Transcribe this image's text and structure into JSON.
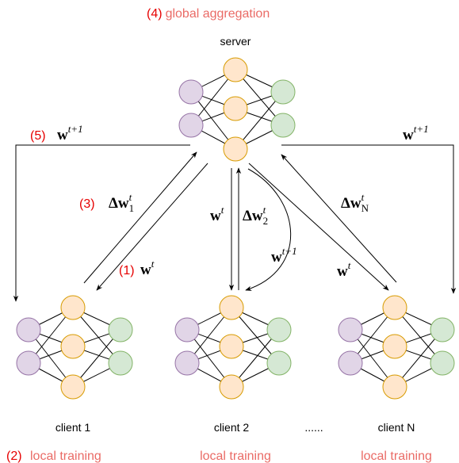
{
  "header": {
    "step": "(4)",
    "title": "global aggregation"
  },
  "server": {
    "label": "server"
  },
  "broadcast_left": {
    "step": "(5)",
    "base": "w",
    "sup": "t+1"
  },
  "broadcast_right": {
    "base": "w",
    "sup": "t+1"
  },
  "client1_up": {
    "step": "(3)",
    "base": "Δw",
    "sub": "1",
    "sup": "t"
  },
  "client1_down": {
    "step": "(1)",
    "base": "w",
    "sup": "t"
  },
  "client2_down": {
    "base": "w",
    "sup": "t"
  },
  "client2_up": {
    "base": "Δw",
    "sub": "2",
    "sup": "t"
  },
  "client2_next": {
    "base": "w",
    "sup": "t+1"
  },
  "clientN_up": {
    "base": "Δw",
    "sub": "N",
    "sup": "t"
  },
  "clientN_down": {
    "base": "w",
    "sup": "t"
  },
  "clients": [
    "client 1",
    "client 2",
    "client N"
  ],
  "ellipsis": "......",
  "footer": {
    "step": "(2)",
    "labels": [
      "local training",
      "local training",
      "local training"
    ]
  }
}
